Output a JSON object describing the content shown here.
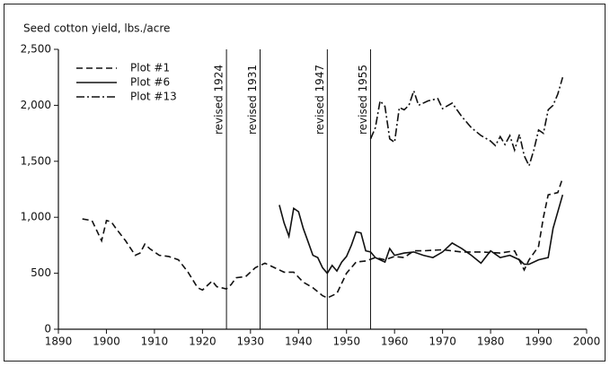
{
  "chart_data": {
    "type": "line",
    "ylabel": "Seed cotton yield, lbs./acre",
    "xlim": [
      1890,
      2000
    ],
    "xticks": [
      1890,
      1900,
      1910,
      1920,
      1930,
      1940,
      1950,
      1960,
      1970,
      1980,
      1990,
      2000
    ],
    "ylim": [
      0,
      2500
    ],
    "yticks": [
      0,
      500,
      {
        "value": 1000,
        "label": "1,000"
      },
      {
        "value": 1500,
        "label": "1,500"
      },
      {
        "value": 2000,
        "label": "2,000"
      },
      {
        "value": 2500,
        "label": "2,500"
      }
    ],
    "legend": "upper left",
    "annotations": [
      {
        "text": "revised 1924",
        "x": 1925
      },
      {
        "text": "revised 1931",
        "x": 1932
      },
      {
        "text": "revised 1947",
        "x": 1946
      },
      {
        "text": "revised 1955",
        "x": 1955
      }
    ],
    "series": [
      {
        "name": "Plot #1",
        "color": "#111111",
        "dash": "dashed",
        "x": [
          1895,
          1897,
          1898,
          1899,
          1900,
          1901,
          1902,
          1904,
          1906,
          1907,
          1908,
          1909,
          1911,
          1913,
          1915,
          1917,
          1919,
          1920,
          1922,
          1923,
          1924,
          1925,
          1926,
          1927,
          1929,
          1931,
          1933,
          1935,
          1937,
          1939,
          1941,
          1943,
          1945,
          1946,
          1948,
          1950,
          1952,
          1954,
          1956,
          1958,
          1960,
          1962,
          1964,
          1966,
          1970,
          1974,
          1978,
          1982,
          1985,
          1987,
          1988,
          1990,
          1991,
          1992,
          1994,
          1995
        ],
        "values": [
          985,
          970,
          880,
          790,
          970,
          960,
          900,
          790,
          660,
          680,
          760,
          720,
          660,
          650,
          620,
          510,
          370,
          350,
          430,
          380,
          370,
          360,
          400,
          460,
          470,
          550,
          590,
          550,
          510,
          510,
          420,
          370,
          300,
          280,
          320,
          500,
          600,
          610,
          640,
          620,
          650,
          640,
          700,
          700,
          710,
          690,
          690,
          680,
          700,
          530,
          620,
          740,
          1000,
          1200,
          1220,
          1350
        ]
      },
      {
        "name": "Plot #6",
        "color": "#111111",
        "dash": "solid",
        "x": [
          1936,
          1937,
          1938,
          1939,
          1940,
          1941,
          1942,
          1943,
          1944,
          1945,
          1946,
          1947,
          1948,
          1949,
          1950,
          1951,
          1952,
          1953,
          1954,
          1955,
          1956,
          1957,
          1958,
          1959,
          1960,
          1962,
          1964,
          1966,
          1968,
          1970,
          1972,
          1974,
          1976,
          1978,
          1980,
          1982,
          1984,
          1986,
          1987,
          1988,
          1990,
          1992,
          1993,
          1995
        ],
        "values": [
          1110,
          950,
          830,
          1080,
          1050,
          900,
          780,
          660,
          640,
          550,
          500,
          570,
          520,
          600,
          650,
          750,
          870,
          860,
          700,
          690,
          640,
          620,
          600,
          720,
          660,
          680,
          690,
          660,
          640,
          690,
          770,
          720,
          660,
          590,
          700,
          640,
          660,
          620,
          580,
          580,
          620,
          640,
          900,
          1200
        ]
      },
      {
        "name": "Plot #13",
        "color": "#111111",
        "dash": "dashdot",
        "x": [
          1955,
          1956,
          1957,
          1958,
          1959,
          1960,
          1961,
          1962,
          1963,
          1964,
          1965,
          1967,
          1969,
          1970,
          1972,
          1974,
          1976,
          1978,
          1980,
          1981,
          1982,
          1983,
          1984,
          1985,
          1986,
          1987,
          1988,
          1989,
          1990,
          1991,
          1992,
          1993,
          1994,
          1995
        ],
        "values": [
          1700,
          1800,
          2040,
          1990,
          1700,
          1670,
          1980,
          1960,
          2000,
          2130,
          2000,
          2040,
          2060,
          1970,
          2020,
          1900,
          1800,
          1730,
          1680,
          1640,
          1720,
          1650,
          1730,
          1600,
          1740,
          1550,
          1460,
          1600,
          1780,
          1750,
          1960,
          2000,
          2100,
          2250
        ]
      }
    ]
  }
}
